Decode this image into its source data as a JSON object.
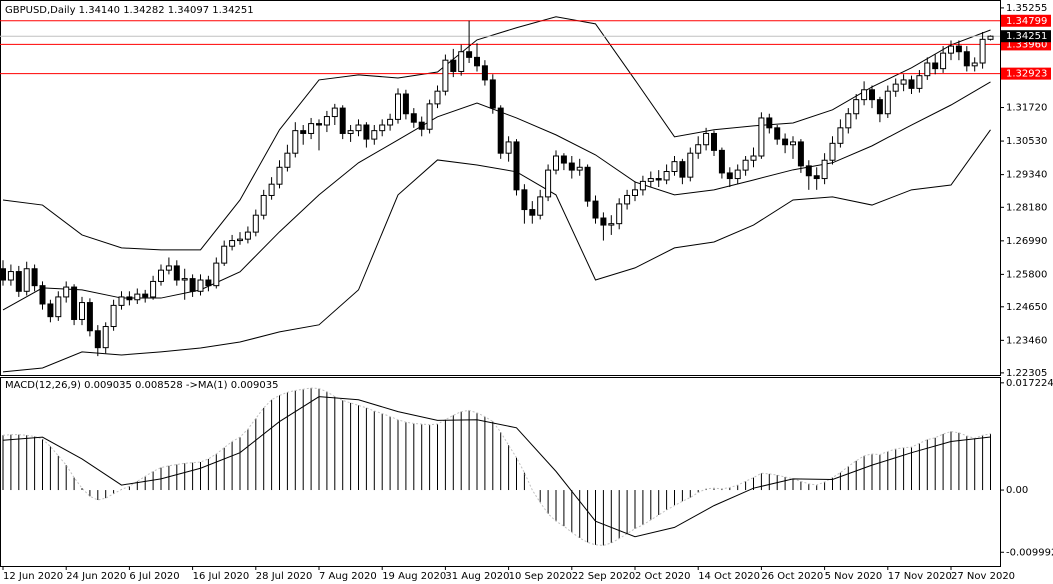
{
  "chart_data": [
    {
      "type": "candlestick",
      "title": "GBPUSD,Daily  1.34140 1.34282 1.34097 1.34251",
      "candle_color": "#000000",
      "open": [
        1.26,
        1.256,
        1.259,
        1.252,
        1.26,
        1.254,
        1.2475,
        1.243,
        1.25,
        1.2535,
        1.242,
        1.248,
        1.238,
        1.232,
        1.2395,
        1.247,
        1.25,
        1.249,
        1.251,
        1.25,
        1.2555,
        1.2595,
        1.261,
        1.256,
        1.2565,
        1.252,
        1.256,
        1.254,
        1.262,
        1.268,
        1.27,
        1.2705,
        1.273,
        1.279,
        1.286,
        1.29,
        1.296,
        1.301,
        1.309,
        1.308,
        1.3115,
        1.311,
        1.314,
        1.317,
        1.308,
        1.309,
        1.311,
        1.306,
        1.309,
        1.311,
        1.313,
        1.322,
        1.315,
        1.312,
        1.3095,
        1.3185,
        1.323,
        1.334,
        1.33,
        1.337,
        1.335,
        1.332,
        1.327,
        1.317,
        1.301,
        1.305,
        1.288,
        1.281,
        1.279,
        1.2855,
        1.295,
        1.3,
        1.2975,
        1.295,
        1.296,
        1.284,
        1.278,
        1.2755,
        1.276,
        1.283,
        1.286,
        1.288,
        1.291,
        1.292,
        1.2915,
        1.2945,
        1.298,
        1.2925,
        1.301,
        1.304,
        1.308,
        1.302,
        1.294,
        1.292,
        1.295,
        1.2985,
        1.3,
        1.3135,
        1.31,
        1.306,
        1.304,
        1.305,
        1.2965,
        1.293,
        1.292,
        1.2985,
        1.3045,
        1.31,
        1.315,
        1.32,
        1.3235,
        1.32,
        1.315,
        1.323,
        1.3255,
        1.327,
        1.324,
        1.3285,
        1.333,
        1.331,
        1.3365,
        1.339,
        1.337,
        1.332,
        1.333,
        1.3414
      ],
      "high": [
        1.263,
        1.2615,
        1.261,
        1.2625,
        1.2615,
        1.2555,
        1.249,
        1.252,
        1.2555,
        1.2545,
        1.25,
        1.2495,
        1.24,
        1.241,
        1.249,
        1.252,
        1.252,
        1.253,
        1.2525,
        1.2575,
        1.2615,
        1.264,
        1.263,
        1.26,
        1.258,
        1.258,
        1.2575,
        1.264,
        1.27,
        1.272,
        1.273,
        1.275,
        1.281,
        1.288,
        1.2925,
        1.2985,
        1.304,
        1.312,
        1.311,
        1.3135,
        1.313,
        1.316,
        1.3185,
        1.318,
        1.311,
        1.313,
        1.312,
        1.311,
        1.313,
        1.315,
        1.324,
        1.3235,
        1.317,
        1.314,
        1.32,
        1.325,
        1.336,
        1.338,
        1.3395,
        1.348,
        1.34,
        1.334,
        1.329,
        1.318,
        1.307,
        1.306,
        1.29,
        1.284,
        1.288,
        1.297,
        1.302,
        1.301,
        1.3,
        1.299,
        1.297,
        1.286,
        1.28,
        1.279,
        1.285,
        1.288,
        1.291,
        1.293,
        1.2945,
        1.295,
        1.297,
        1.3,
        1.299,
        1.303,
        1.307,
        1.31,
        1.309,
        1.303,
        1.296,
        1.297,
        1.3,
        1.303,
        1.3155,
        1.315,
        1.311,
        1.308,
        1.307,
        1.306,
        1.2985,
        1.296,
        1.301,
        1.307,
        1.313,
        1.317,
        1.322,
        1.3265,
        1.325,
        1.321,
        1.325,
        1.3275,
        1.329,
        1.3285,
        1.3305,
        1.335,
        1.336,
        1.339,
        1.341,
        1.341,
        1.339,
        1.335,
        1.344,
        1.34282
      ],
      "low": [
        1.254,
        1.254,
        1.25,
        1.2505,
        1.252,
        1.2455,
        1.241,
        1.2415,
        1.248,
        1.24,
        1.24,
        1.236,
        1.229,
        1.23,
        1.238,
        1.2455,
        1.247,
        1.2475,
        1.248,
        1.249,
        1.254,
        1.258,
        1.254,
        1.249,
        1.25,
        1.2505,
        1.252,
        1.253,
        1.261,
        1.2665,
        1.2685,
        1.269,
        1.2715,
        1.2775,
        1.2845,
        1.2885,
        1.2945,
        1.2995,
        1.304,
        1.306,
        1.302,
        1.3085,
        1.311,
        1.306,
        1.305,
        1.307,
        1.303,
        1.304,
        1.307,
        1.309,
        1.3115,
        1.313,
        1.31,
        1.307,
        1.308,
        1.317,
        1.3215,
        1.328,
        1.3285,
        1.333,
        1.33,
        1.325,
        1.315,
        1.299,
        1.298,
        1.286,
        1.276,
        1.276,
        1.2775,
        1.284,
        1.2935,
        1.295,
        1.292,
        1.293,
        1.282,
        1.276,
        1.27,
        1.272,
        1.274,
        1.281,
        1.284,
        1.286,
        1.289,
        1.289,
        1.29,
        1.293,
        1.29,
        1.291,
        1.299,
        1.302,
        1.3,
        1.292,
        1.289,
        1.29,
        1.293,
        1.296,
        1.299,
        1.308,
        1.304,
        1.301,
        1.299,
        1.294,
        1.288,
        1.288,
        1.29,
        1.297,
        1.303,
        1.308,
        1.313,
        1.318,
        1.317,
        1.312,
        1.3135,
        1.321,
        1.323,
        1.322,
        1.3225,
        1.327,
        1.329,
        1.3295,
        1.334,
        1.334,
        1.33,
        1.33,
        1.331,
        1.34097
      ],
      "close": [
        1.256,
        1.259,
        1.252,
        1.26,
        1.254,
        1.2475,
        1.243,
        1.25,
        1.2535,
        1.242,
        1.248,
        1.238,
        1.232,
        1.2395,
        1.247,
        1.25,
        1.249,
        1.251,
        1.25,
        1.2555,
        1.2595,
        1.261,
        1.256,
        1.2565,
        1.252,
        1.256,
        1.254,
        1.262,
        1.268,
        1.27,
        1.2705,
        1.273,
        1.279,
        1.286,
        1.29,
        1.296,
        1.301,
        1.309,
        1.308,
        1.3115,
        1.311,
        1.314,
        1.317,
        1.308,
        1.309,
        1.311,
        1.306,
        1.309,
        1.311,
        1.313,
        1.322,
        1.315,
        1.312,
        1.3095,
        1.3185,
        1.323,
        1.334,
        1.33,
        1.337,
        1.335,
        1.332,
        1.327,
        1.317,
        1.301,
        1.305,
        1.288,
        1.281,
        1.279,
        1.2855,
        1.295,
        1.3,
        1.2975,
        1.295,
        1.296,
        1.284,
        1.278,
        1.2755,
        1.276,
        1.283,
        1.286,
        1.288,
        1.291,
        1.292,
        1.2915,
        1.2945,
        1.298,
        1.2925,
        1.301,
        1.304,
        1.308,
        1.302,
        1.294,
        1.292,
        1.295,
        1.2985,
        1.3,
        1.3135,
        1.31,
        1.306,
        1.304,
        1.305,
        1.2965,
        1.293,
        1.292,
        1.2985,
        1.3045,
        1.31,
        1.315,
        1.32,
        1.3235,
        1.32,
        1.315,
        1.323,
        1.3255,
        1.327,
        1.324,
        1.3285,
        1.333,
        1.331,
        1.3365,
        1.339,
        1.337,
        1.332,
        1.333,
        1.3414,
        1.34251
      ],
      "bands": {
        "x": [
          0,
          5,
          10,
          15,
          20,
          25,
          30,
          35,
          40,
          45,
          50,
          55,
          60,
          65,
          70,
          75,
          80,
          85,
          90,
          95,
          100,
          105,
          110,
          115,
          120,
          125
        ],
        "upper": [
          1.2844,
          1.2826,
          1.272,
          1.2674,
          1.2667,
          1.2667,
          1.2844,
          1.3093,
          1.327,
          1.3288,
          1.3277,
          1.3298,
          1.3412,
          1.3455,
          1.3494,
          1.3469,
          1.327,
          1.3068,
          1.3093,
          1.3107,
          1.3117,
          1.3164,
          1.3245,
          1.3313,
          1.3394,
          1.3447
        ],
        "middle": [
          1.2454,
          1.2532,
          1.2525,
          1.2496,
          1.2496,
          1.2525,
          1.2589,
          1.2731,
          1.2862,
          1.2976,
          1.3057,
          1.3139,
          1.3188,
          1.3135,
          1.3075,
          1.3004,
          1.2908,
          1.2862,
          1.288,
          1.2915,
          1.2951,
          1.2976,
          1.3036,
          1.311,
          1.3181,
          1.3263
        ],
        "lower": [
          1.2234,
          1.2248,
          1.2305,
          1.2294,
          1.2305,
          1.2319,
          1.234,
          1.2376,
          1.2401,
          1.2525,
          1.2862,
          1.2986,
          1.2968,
          1.2944,
          1.2862,
          1.256,
          1.2603,
          1.2674,
          1.2695,
          1.2755,
          1.2844,
          1.2855,
          1.2826,
          1.288,
          1.2897,
          1.3093
        ]
      },
      "ylim": [
        1.2223,
        1.355
      ],
      "yticks": [
        {
          "value": 1.35255,
          "label": "1.35255"
        },
        {
          "value": 1.3172,
          "label": "1.31720"
        },
        {
          "value": 1.3053,
          "label": "1.30530"
        },
        {
          "value": 1.2934,
          "label": "1.29340"
        },
        {
          "value": 1.2818,
          "label": "1.28180"
        },
        {
          "value": 1.2699,
          "label": "1.26990"
        },
        {
          "value": 1.258,
          "label": "1.25800"
        },
        {
          "value": 1.2465,
          "label": "1.24650"
        },
        {
          "value": 1.2346,
          "label": "1.23460"
        },
        {
          "value": 1.22305,
          "label": "1.22305"
        }
      ],
      "levels": [
        {
          "value": 1.34799,
          "label": "1.34799"
        },
        {
          "value": 1.3396,
          "label": "1.33960"
        },
        {
          "value": 1.32923,
          "label": "1.32923"
        }
      ],
      "level_color": "#ff0000",
      "current_price": {
        "value": 1.34251,
        "label": "1.34251"
      },
      "xticks": [
        {
          "value": 0,
          "label": "12 Jun 2020"
        },
        {
          "value": 8,
          "label": "24 Jun 2020"
        },
        {
          "value": 16,
          "label": "6 Jul 2020"
        },
        {
          "value": 24,
          "label": "16 Jul 2020"
        },
        {
          "value": 32,
          "label": "28 Jul 2020"
        },
        {
          "value": 40,
          "label": "7 Aug 2020"
        },
        {
          "value": 48,
          "label": "19 Aug 2020"
        },
        {
          "value": 56,
          "label": "31 Aug 2020"
        },
        {
          "value": 64,
          "label": "10 Sep 2020"
        },
        {
          "value": 72,
          "label": "22 Sep 2020"
        },
        {
          "value": 80,
          "label": "2 Oct 2020"
        },
        {
          "value": 88,
          "label": "14 Oct 2020"
        },
        {
          "value": 96,
          "label": "26 Oct 2020"
        },
        {
          "value": 104,
          "label": "5 Nov 2020"
        },
        {
          "value": 112,
          "label": "17 Nov 2020"
        },
        {
          "value": 120,
          "label": "27 Nov 2020"
        }
      ]
    },
    {
      "type": "macd",
      "title": "MACD(12,26,9) 0.009035 0.008528 ->MA(1) 0.009035",
      "values": [
        0.0088,
        0.0089,
        0.0089,
        0.0088,
        0.0086,
        0.0082,
        0.007,
        0.0055,
        0.004,
        0.002,
        0.0003,
        -0.001,
        -0.0016,
        -0.0013,
        -0.0006,
        0.0001,
        0.0006,
        0.0014,
        0.0022,
        0.003,
        0.0036,
        0.0039,
        0.0041,
        0.0043,
        0.0044,
        0.0045,
        0.005,
        0.0058,
        0.0068,
        0.0078,
        0.0085,
        0.0098,
        0.0115,
        0.0132,
        0.0145,
        0.0152,
        0.0157,
        0.016,
        0.0162,
        0.0164,
        0.0163,
        0.0158,
        0.015,
        0.0144,
        0.014,
        0.0136,
        0.0132,
        0.0127,
        0.0123,
        0.0118,
        0.0113,
        0.0109,
        0.0107,
        0.0106,
        0.0105,
        0.0106,
        0.0113,
        0.012,
        0.0126,
        0.0128,
        0.0124,
        0.0118,
        0.011,
        0.0093,
        0.0072,
        0.0052,
        0.0028,
        0.0,
        -0.002,
        -0.0038,
        -0.005,
        -0.0058,
        -0.0068,
        -0.0077,
        -0.0084,
        -0.0088,
        -0.0089,
        -0.0085,
        -0.0078,
        -0.007,
        -0.0062,
        -0.0056,
        -0.0048,
        -0.004,
        -0.0032,
        -0.0025,
        -0.0018,
        -0.0012,
        -0.0004,
        0.0002,
        0.0003,
        0.0002,
        0.0004,
        0.0008,
        0.0014,
        0.002,
        0.0027,
        0.0026,
        0.0024,
        0.0021,
        0.0018,
        0.0014,
        0.001,
        0.0008,
        0.0013,
        0.002,
        0.0028,
        0.0038,
        0.0047,
        0.0055,
        0.0058,
        0.0057,
        0.0062,
        0.0066,
        0.0068,
        0.0069,
        0.0075,
        0.0081,
        0.0084,
        0.009,
        0.0094,
        0.0092,
        0.0087,
        0.0083,
        0.0088,
        0.009035
      ],
      "signal": {
        "x": [
          0,
          5,
          10,
          15,
          20,
          25,
          30,
          35,
          40,
          45,
          50,
          55,
          60,
          65,
          70,
          75,
          80,
          85,
          90,
          95,
          100,
          105,
          110,
          115,
          120,
          125
        ],
        "values": [
          0.008,
          0.0085,
          0.005,
          0.0008,
          0.0018,
          0.0035,
          0.006,
          0.011,
          0.015,
          0.0145,
          0.0126,
          0.0112,
          0.0113,
          0.01,
          0.003,
          -0.005,
          -0.0075,
          -0.006,
          -0.0025,
          0.0003,
          0.0018,
          0.0017,
          0.004,
          0.006,
          0.0078,
          0.008528
        ]
      },
      "ylim": [
        -0.0122,
        0.018
      ],
      "yticks": [
        0.017224,
        {
          "value": 0,
          "label": "0.00"
        },
        -0.009992
      ]
    }
  ]
}
